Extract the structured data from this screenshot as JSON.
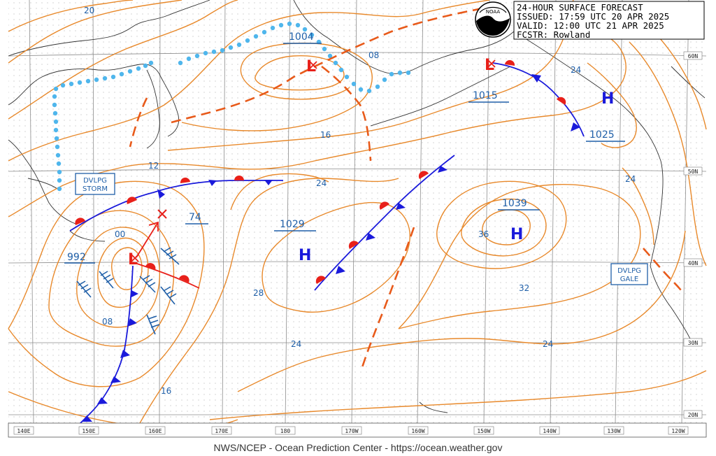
{
  "header": {
    "title": "24-HOUR SURFACE FORECAST",
    "issued": "ISSUED: 17:59 UTC 20 APR 2025",
    "valid": "VALID:  12:00 UTC 21 APR 2025",
    "forecaster": "FCSTR:  Rowland"
  },
  "logo": {
    "text": "NOAA"
  },
  "footer": "NWS/NCEP - Ocean Prediction Center - https://ocean.weather.gov",
  "longitude_labels": [
    "140E",
    "150E",
    "160E",
    "170E",
    "180",
    "170W",
    "160W",
    "150W",
    "140W",
    "130W",
    "120W"
  ],
  "latitude_labels": [
    "60N",
    "50N",
    "40N",
    "30N",
    "20N"
  ],
  "pressure_centers": [
    {
      "type": "L",
      "value": "992"
    },
    {
      "type": "L",
      "value": "1004"
    },
    {
      "type": "L",
      "value": "1015"
    },
    {
      "type": "H",
      "value": "1025"
    },
    {
      "type": "H",
      "value": "1029"
    },
    {
      "type": "H",
      "value": "1039"
    },
    {
      "type": "new-low",
      "value": "74"
    }
  ],
  "isobar_labels": [
    "20",
    "12",
    "16",
    "24",
    "08",
    "00",
    "08",
    "16",
    "24",
    "28",
    "24",
    "36",
    "32",
    "24",
    "24",
    "24"
  ],
  "warnings": [
    {
      "line1": "DVLPG",
      "line2": "STORM"
    },
    {
      "line1": "DVLPG",
      "line2": "GALE"
    }
  ],
  "colors": {
    "isobar": "#e8892b",
    "cold_front": "#1a1adb",
    "warm_front": "#e8201a",
    "trough": "#e85a1a",
    "ice_edge": "#4fb6ec",
    "text_blue": "#1f5fa8",
    "grid": "#9a9a9a"
  }
}
